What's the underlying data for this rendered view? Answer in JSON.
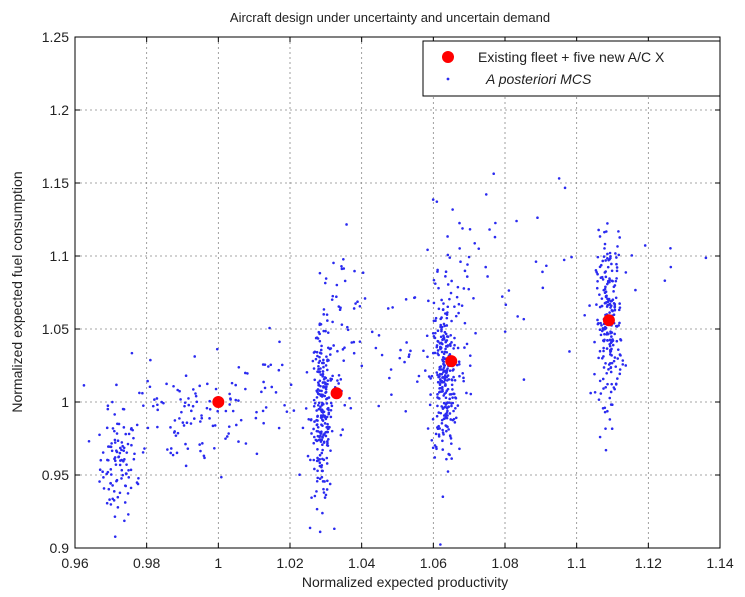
{
  "chart_data": {
    "type": "scatter",
    "title": "Aircraft design under uncertainty and uncertain demand",
    "xlabel": "Normalized expected  productivity",
    "ylabel": "Normalized expected fuel consumption",
    "xlim": [
      0.96,
      1.14
    ],
    "ylim": [
      0.9,
      1.25
    ],
    "x_ticks": [
      "0.96",
      "0.98",
      "1",
      "1.02",
      "1.04",
      "1.06",
      "1.08",
      "1.1",
      "1.12",
      "1.14"
    ],
    "y_ticks": [
      "0.9",
      "0.95",
      "1",
      "1.05",
      "1.1",
      "1.15",
      "1.2",
      "1.25"
    ],
    "grid": true,
    "legend_position": "top-right",
    "series": [
      {
        "name": "Existing fleet + five new A/C X",
        "marker": "large-dot",
        "color": "#ff0000",
        "x": [
          1.0,
          1.033,
          1.065,
          1.109
        ],
        "y": [
          1.0,
          1.006,
          1.028,
          1.056
        ]
      },
      {
        "name": "A posteriori MCS",
        "marker": "small-dot",
        "color": "#2a2af0",
        "clusters": [
          {
            "cx": 0.972,
            "cy": 0.955,
            "sx": 0.0025,
            "sy": 0.018,
            "n": 90
          },
          {
            "cx": 0.99,
            "cy": 0.99,
            "sx": 0.012,
            "sy": 0.02,
            "n": 110
          },
          {
            "cx": 1.015,
            "cy": 1.01,
            "sx": 0.012,
            "sy": 0.018,
            "n": 45
          },
          {
            "cx": 1.029,
            "cy": 0.99,
            "sx": 0.0015,
            "sy": 0.03,
            "n": 230
          },
          {
            "cx": 1.034,
            "cy": 1.05,
            "sx": 0.003,
            "sy": 0.03,
            "n": 45
          },
          {
            "cx": 1.063,
            "cy": 1.015,
            "sx": 0.0018,
            "sy": 0.028,
            "n": 260
          },
          {
            "cx": 1.066,
            "cy": 1.07,
            "sx": 0.003,
            "sy": 0.035,
            "n": 50
          },
          {
            "cx": 1.05,
            "cy": 1.04,
            "sx": 0.01,
            "sy": 0.03,
            "n": 40
          },
          {
            "cx": 1.085,
            "cy": 1.08,
            "sx": 0.012,
            "sy": 0.04,
            "n": 30
          },
          {
            "cx": 1.109,
            "cy": 1.055,
            "sx": 0.0018,
            "sy": 0.028,
            "n": 230
          },
          {
            "cx": 1.12,
            "cy": 1.1,
            "sx": 0.008,
            "sy": 0.02,
            "n": 10
          }
        ]
      }
    ]
  }
}
